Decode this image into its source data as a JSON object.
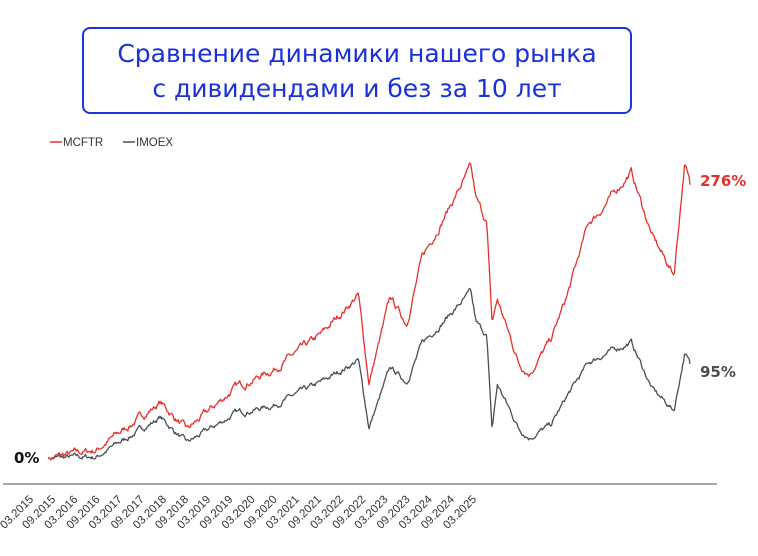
{
  "title": {
    "line1": "Сравнение динамики нашего рынка",
    "line2": "с дивидендами и без за 10 лет"
  },
  "chart_data": {
    "type": "line",
    "title": "Сравнение динамики нашего рынка с дивидендами и без за 10 лет",
    "xlabel": "",
    "ylabel": "",
    "x_tick_labels": [
      "03.2015",
      "09.2015",
      "03.2016",
      "09.2016",
      "03.2017",
      "09.2017",
      "03.2018",
      "09.2018",
      "03.2019",
      "09.2019",
      "03.2020",
      "09.2020",
      "03.2021",
      "09.2021",
      "03.2022",
      "09.2022",
      "03.2023",
      "09.2023",
      "03.2024",
      "09.2024",
      "03.2025"
    ],
    "x": [
      "2015-03",
      "2015-12",
      "2016-12",
      "2017-05",
      "2018-02",
      "2018-09",
      "2019-06",
      "2020-01",
      "2020-03",
      "2020-07",
      "2020-10",
      "2021-01",
      "2021-10",
      "2021-11",
      "2022-01",
      "2022-02",
      "2022-03",
      "2022-07",
      "2022-09",
      "2023-01",
      "2023-04",
      "2023-08",
      "2023-10",
      "2024-04",
      "2024-08",
      "2024-12",
      "2025-02",
      "2025-03"
    ],
    "series": [
      {
        "name": "MCFTR",
        "color": "#e8302a",
        "end_label": "276%",
        "values": [
          0,
          8,
          56,
          28,
          71,
          89,
          124,
          165,
          76,
          162,
          136,
          203,
          293,
          261,
          238,
          136,
          160,
          96,
          86,
          119,
          163,
          237,
          248,
          289,
          223,
          185,
          298,
          276
        ]
      },
      {
        "name": "IMOEX",
        "color": "#4a4f52",
        "end_label": "95%",
        "values": [
          0,
          1,
          41,
          15,
          45,
          53,
          76,
          99,
          31,
          91,
          77,
          116,
          167,
          136,
          124,
          28,
          74,
          30,
          21,
          33,
          62,
          96,
          102,
          117,
          69,
          48,
          106,
          95
        ]
      }
    ],
    "baseline_label": "0%",
    "unit": "%",
    "grid": false,
    "legend_position": "top-left"
  }
}
